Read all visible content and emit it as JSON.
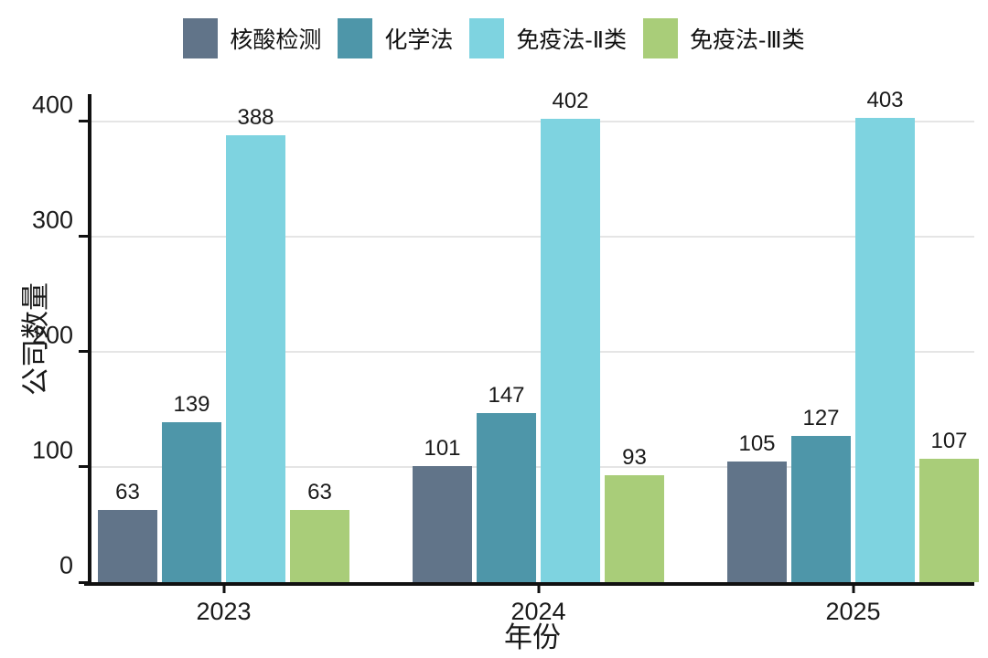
{
  "chart_data": {
    "type": "bar",
    "categories": [
      "2023",
      "2024",
      "2025"
    ],
    "series": [
      {
        "name": "核酸检测",
        "color": "#617489",
        "values": [
          63,
          101,
          105
        ]
      },
      {
        "name": "化学法",
        "color": "#4e96a9",
        "values": [
          139,
          147,
          127
        ]
      },
      {
        "name": "免疫法-Ⅱ类",
        "color": "#7ed3e0",
        "values": [
          388,
          402,
          403
        ]
      },
      {
        "name": "免疫法-Ⅲ类",
        "color": "#a9cd79",
        "values": [
          63,
          93,
          107
        ]
      }
    ],
    "xlabel": "年份",
    "ylabel": "公司数量",
    "yticks": [
      0,
      100,
      200,
      300,
      400
    ],
    "ylim": [
      0,
      422
    ],
    "grid": true,
    "legend_position": "top",
    "bar_labels": true,
    "axis_color": "#111111",
    "gridline_color": "#e5e5e5"
  }
}
